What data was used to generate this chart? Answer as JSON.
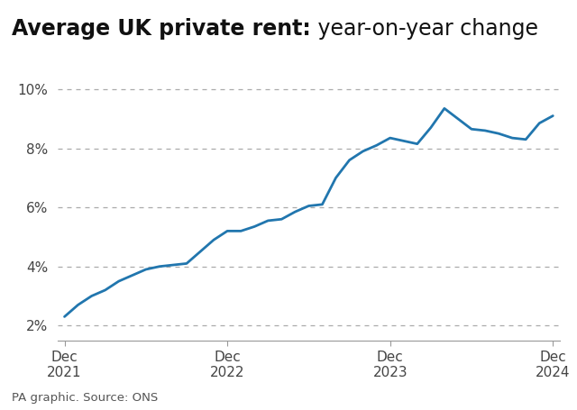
{
  "title_bold": "Average UK private rent:",
  "title_normal": " year-on-year change",
  "source": "PA graphic. Source: ONS",
  "line_color": "#2176ae",
  "line_width": 2.0,
  "background_color": "#ffffff",
  "ylim": [
    1.5,
    10.8
  ],
  "yticks": [
    2,
    4,
    6,
    8,
    10
  ],
  "ytick_labels": [
    "2%",
    "4%",
    "6%",
    "8%",
    "10%"
  ],
  "xtick_labels": [
    "Dec\n2021",
    "Dec\n2022",
    "Dec\n2023",
    "Dec\n2024"
  ],
  "xtick_positions": [
    0,
    12,
    24,
    36
  ],
  "months": [
    0,
    1,
    2,
    3,
    4,
    5,
    6,
    7,
    8,
    9,
    10,
    11,
    12,
    13,
    14,
    15,
    16,
    17,
    18,
    19,
    20,
    21,
    22,
    23,
    24,
    25,
    26,
    27,
    28,
    29,
    30,
    31,
    32,
    33,
    34,
    35,
    36
  ],
  "values": [
    2.3,
    2.7,
    3.0,
    3.2,
    3.5,
    3.7,
    3.9,
    4.0,
    4.05,
    4.1,
    4.5,
    4.9,
    5.2,
    5.2,
    5.35,
    5.55,
    5.6,
    5.85,
    6.05,
    6.1,
    7.0,
    7.6,
    7.9,
    8.1,
    8.35,
    8.25,
    8.15,
    8.7,
    9.35,
    9.0,
    8.65,
    8.6,
    8.5,
    8.35,
    8.3,
    8.85,
    9.1
  ],
  "title_fontsize": 17,
  "tick_fontsize": 11,
  "source_fontsize": 9.5
}
